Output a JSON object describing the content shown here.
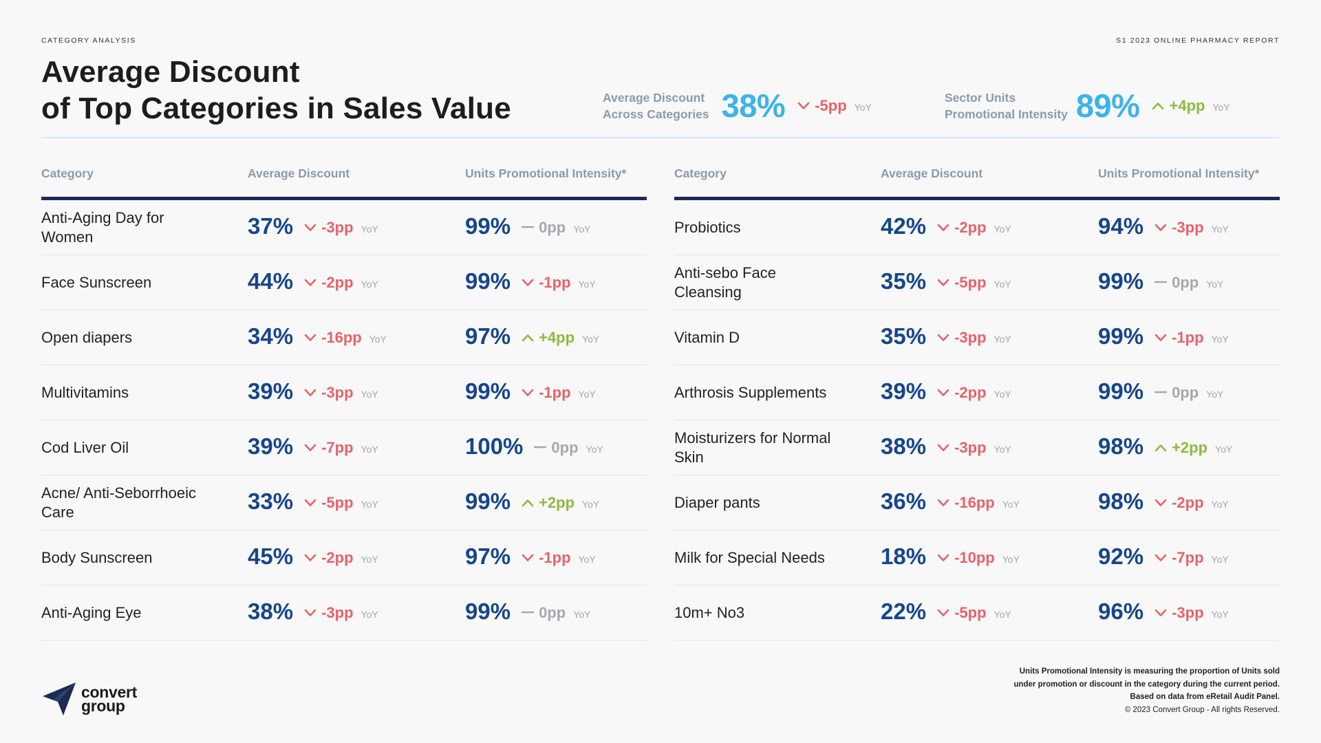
{
  "header": {
    "kicker_left": "CATEGORY ANALYSIS",
    "kicker_right": "S1 2023 ONLINE PHARMACY REPORT",
    "title_line1": "Average Discount",
    "title_line2": "of Top Categories in Sales Value"
  },
  "kpis": [
    {
      "label_line1": "Average Discount",
      "label_line2": "Across Categories",
      "value": "38%",
      "change": "-5pp",
      "direction": "down",
      "yoy": "YoY"
    },
    {
      "label_line1": "Sector Units",
      "label_line2": "Promotional Intensity",
      "value": "89%",
      "change": "+4pp",
      "direction": "up",
      "yoy": "YoY"
    }
  ],
  "columns": [
    "Category",
    "Average Discount",
    "Units Promotional Intensity*"
  ],
  "tables": [
    {
      "rows": [
        {
          "category": "Anti-Aging Day for Women",
          "discount": "37%",
          "discount_change": "-3pp",
          "discount_dir": "down",
          "intensity": "99%",
          "intensity_change": "0pp",
          "intensity_dir": "flat"
        },
        {
          "category": "Face Sunscreen",
          "discount": "44%",
          "discount_change": "-2pp",
          "discount_dir": "down",
          "intensity": "99%",
          "intensity_change": "-1pp",
          "intensity_dir": "down"
        },
        {
          "category": "Open diapers",
          "discount": "34%",
          "discount_change": "-16pp",
          "discount_dir": "down",
          "intensity": "97%",
          "intensity_change": "+4pp",
          "intensity_dir": "up"
        },
        {
          "category": "Multivitamins",
          "discount": "39%",
          "discount_change": "-3pp",
          "discount_dir": "down",
          "intensity": "99%",
          "intensity_change": "-1pp",
          "intensity_dir": "down"
        },
        {
          "category": "Cod Liver Oil",
          "discount": "39%",
          "discount_change": "-7pp",
          "discount_dir": "down",
          "intensity": "100%",
          "intensity_change": "0pp",
          "intensity_dir": "flat"
        },
        {
          "category": "Acne/ Anti-Seborrhoeic Care",
          "discount": "33%",
          "discount_change": "-5pp",
          "discount_dir": "down",
          "intensity": "99%",
          "intensity_change": "+2pp",
          "intensity_dir": "up"
        },
        {
          "category": "Body Sunscreen",
          "discount": "45%",
          "discount_change": "-2pp",
          "discount_dir": "down",
          "intensity": "97%",
          "intensity_change": "-1pp",
          "intensity_dir": "down"
        },
        {
          "category": "Anti-Aging Eye",
          "discount": "38%",
          "discount_change": "-3pp",
          "discount_dir": "down",
          "intensity": "99%",
          "intensity_change": "0pp",
          "intensity_dir": "flat"
        }
      ]
    },
    {
      "rows": [
        {
          "category": "Probiotics",
          "discount": "42%",
          "discount_change": "-2pp",
          "discount_dir": "down",
          "intensity": "94%",
          "intensity_change": "-3pp",
          "intensity_dir": "down"
        },
        {
          "category": "Anti-sebo Face Cleansing",
          "discount": "35%",
          "discount_change": "-5pp",
          "discount_dir": "down",
          "intensity": "99%",
          "intensity_change": "0pp",
          "intensity_dir": "flat"
        },
        {
          "category": "Vitamin D",
          "discount": "35%",
          "discount_change": "-3pp",
          "discount_dir": "down",
          "intensity": "99%",
          "intensity_change": "-1pp",
          "intensity_dir": "down"
        },
        {
          "category": "Arthrosis Supplements",
          "discount": "39%",
          "discount_change": "-2pp",
          "discount_dir": "down",
          "intensity": "99%",
          "intensity_change": "0pp",
          "intensity_dir": "flat"
        },
        {
          "category": "Moisturizers for Normal Skin",
          "discount": "38%",
          "discount_change": "-3pp",
          "discount_dir": "down",
          "intensity": "98%",
          "intensity_change": "+2pp",
          "intensity_dir": "up"
        },
        {
          "category": "Diaper pants",
          "discount": "36%",
          "discount_change": "-16pp",
          "discount_dir": "down",
          "intensity": "98%",
          "intensity_change": "-2pp",
          "intensity_dir": "down"
        },
        {
          "category": "Milk for Special Needs",
          "discount": "18%",
          "discount_change": "-10pp",
          "discount_dir": "down",
          "intensity": "92%",
          "intensity_change": "-7pp",
          "intensity_dir": "down"
        },
        {
          "category": "10m+ No3",
          "discount": "22%",
          "discount_change": "-5pp",
          "discount_dir": "down",
          "intensity": "96%",
          "intensity_change": "-3pp",
          "intensity_dir": "down"
        }
      ]
    }
  ],
  "yoy_label": "YoY",
  "footnote": {
    "line1": "Units Promotional Intensity is measuring the proportion of Units sold",
    "line2": "under promotion or discount in the category during the current period.",
    "line3": "Based on data from eRetail Audit Panel.",
    "line4": "© 2023 Convert Group - All rights Reserved."
  },
  "logo": {
    "line1": "convert",
    "line2": "group"
  },
  "colors": {
    "down": "#e8616a",
    "up": "#8cbb3e",
    "flat": "#a6a8ad",
    "value": "#16468a",
    "kpi_value": "#3bb4ea",
    "rule": "#1c2b51"
  }
}
